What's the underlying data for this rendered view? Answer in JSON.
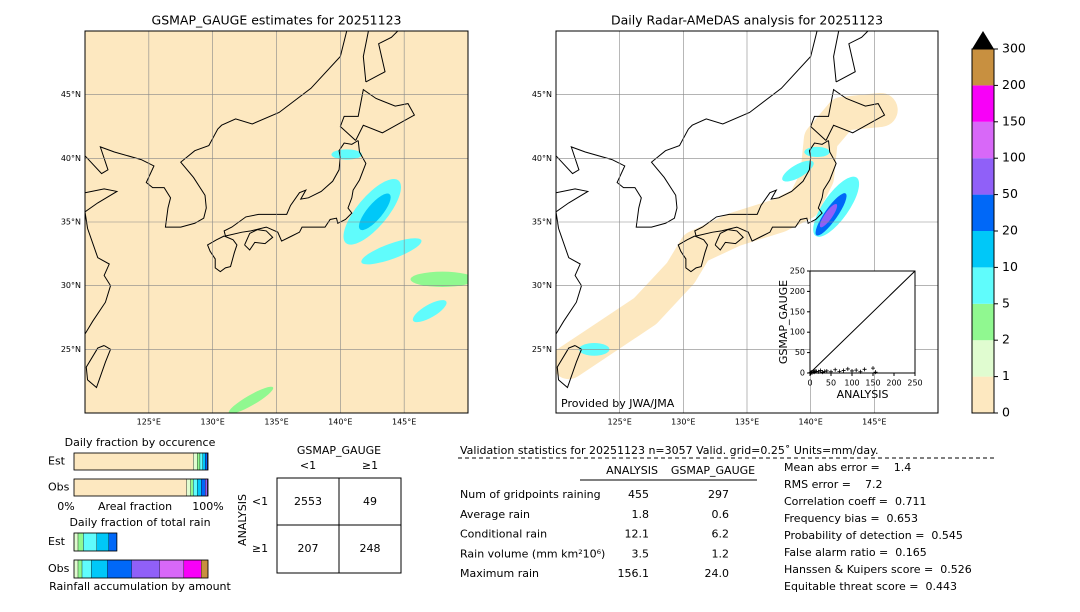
{
  "left_map": {
    "title": "GSMAP_GAUGE estimates for 20251123",
    "xlim": [
      120,
      150
    ],
    "ylim": [
      20,
      50
    ],
    "xticks": [
      {
        "value": 125,
        "label": "125°E"
      },
      {
        "value": 130,
        "label": "130°E"
      },
      {
        "value": 135,
        "label": "135°E"
      },
      {
        "value": 140,
        "label": "140°E"
      },
      {
        "value": 145,
        "label": "145°E"
      }
    ],
    "yticks": [
      {
        "value": 25,
        "label": "25°N"
      },
      {
        "value": 30,
        "label": "30°N"
      },
      {
        "value": 35,
        "label": "35°N"
      },
      {
        "value": 40,
        "label": "40°N"
      },
      {
        "value": 45,
        "label": "45°N"
      }
    ]
  },
  "right_map": {
    "title": "Daily Radar-AMeDAS analysis for 20251123",
    "credit": "Provided by JWA/JMA",
    "xlim": [
      120,
      150
    ],
    "ylim": [
      20,
      50
    ],
    "xticks": [
      {
        "value": 125,
        "label": "125°E"
      },
      {
        "value": 130,
        "label": "130°E"
      },
      {
        "value": 135,
        "label": "135°E"
      },
      {
        "value": 140,
        "label": "140°E"
      },
      {
        "value": 145,
        "label": "145°E"
      }
    ],
    "yticks": [
      {
        "value": 25,
        "label": "25°N"
      },
      {
        "value": 30,
        "label": "30°N"
      },
      {
        "value": 35,
        "label": "35°N"
      },
      {
        "value": 40,
        "label": "40°N"
      },
      {
        "value": 45,
        "label": "45°N"
      }
    ]
  },
  "colorbar": {
    "levels": [
      0,
      1,
      2,
      5,
      10,
      20,
      50,
      100,
      150,
      200,
      300
    ],
    "colors": [
      "#fde8c0",
      "#e0fcd0",
      "#90f890",
      "#60fcfc",
      "#00c8f8",
      "#0068f8",
      "#9060f8",
      "#d868f8",
      "#f800f8",
      "#c89040"
    ],
    "extend": "max"
  },
  "scatter": {
    "xlabel": "ANALYSIS",
    "ylabel": "GSMAP_GAUGE",
    "xlim": [
      0,
      250
    ],
    "ylim": [
      0,
      250
    ],
    "xticks": [
      0,
      50,
      100,
      150,
      200,
      250
    ],
    "yticks": [
      0,
      50,
      100,
      150,
      200,
      250
    ],
    "x": [
      0,
      1,
      2,
      3,
      5,
      8,
      10,
      12,
      15,
      20,
      25,
      30,
      35,
      40,
      50,
      60,
      70,
      80,
      90,
      100,
      110,
      120,
      130,
      150,
      156
    ],
    "y": [
      0,
      1,
      0,
      2,
      1,
      3,
      2,
      5,
      4,
      3,
      6,
      2,
      4,
      5,
      3,
      8,
      4,
      6,
      10,
      5,
      7,
      3,
      9,
      12,
      2
    ]
  },
  "fraction": {
    "occurrence": {
      "title": "Daily fraction by occurence",
      "rows": [
        {
          "name": "Est",
          "values": [
            89,
            3,
            2,
            2,
            2,
            1.5,
            0.5,
            0,
            0,
            0
          ]
        },
        {
          "name": "Obs",
          "values": [
            84,
            3,
            2,
            3,
            3,
            3,
            1.5,
            0.5,
            0,
            0
          ]
        }
      ],
      "left_label": "0%",
      "axis_label": "Areal fraction",
      "right_label": "100%"
    },
    "total_rain": {
      "title": "Daily fraction of total rain",
      "rows": [
        {
          "name": "Est",
          "values": [
            0,
            3,
            4,
            10,
            9,
            6,
            0,
            0,
            0,
            0
          ]
        },
        {
          "name": "Obs",
          "values": [
            0,
            3,
            3,
            7,
            12,
            18,
            21,
            18,
            13,
            5
          ]
        }
      ],
      "axis_label": "Rainfall accumulation by amount"
    }
  },
  "contingency": {
    "column_title": "GSMAP_GAUGE",
    "columns": [
      "<1",
      "≥1"
    ],
    "row_title": "ANALYSIS",
    "rows": [
      "<1",
      "≥1"
    ],
    "cells": [
      [
        2553,
        49
      ],
      [
        207,
        248
      ]
    ]
  },
  "validation": {
    "header": "Validation statistics for 20251123  n=3057 Valid. grid=0.25˚ Units=mm/day.",
    "columns": [
      "ANALYSIS",
      "GSMAP_GAUGE"
    ],
    "rows": [
      {
        "label": "Num of gridpoints raining",
        "values": [
          "455",
          "297"
        ]
      },
      {
        "label": "Average rain",
        "values": [
          "1.8",
          "0.6"
        ]
      },
      {
        "label": "Conditional rain",
        "values": [
          "12.1",
          "6.2"
        ]
      },
      {
        "label": "Rain volume (mm km²10⁶)",
        "values": [
          "3.5",
          "1.2"
        ]
      },
      {
        "label": "Maximum rain",
        "values": [
          "156.1",
          "24.0"
        ]
      }
    ],
    "scores": [
      "Mean abs error =    1.4",
      "RMS error =    7.2",
      "Correlation coeff =  0.711",
      "Frequency bias =  0.653",
      "Probability of detection =  0.545",
      "False alarm ratio =  0.165",
      "Hanssen & Kuipers score =  0.526",
      "Equitable threat score =  0.443"
    ]
  }
}
